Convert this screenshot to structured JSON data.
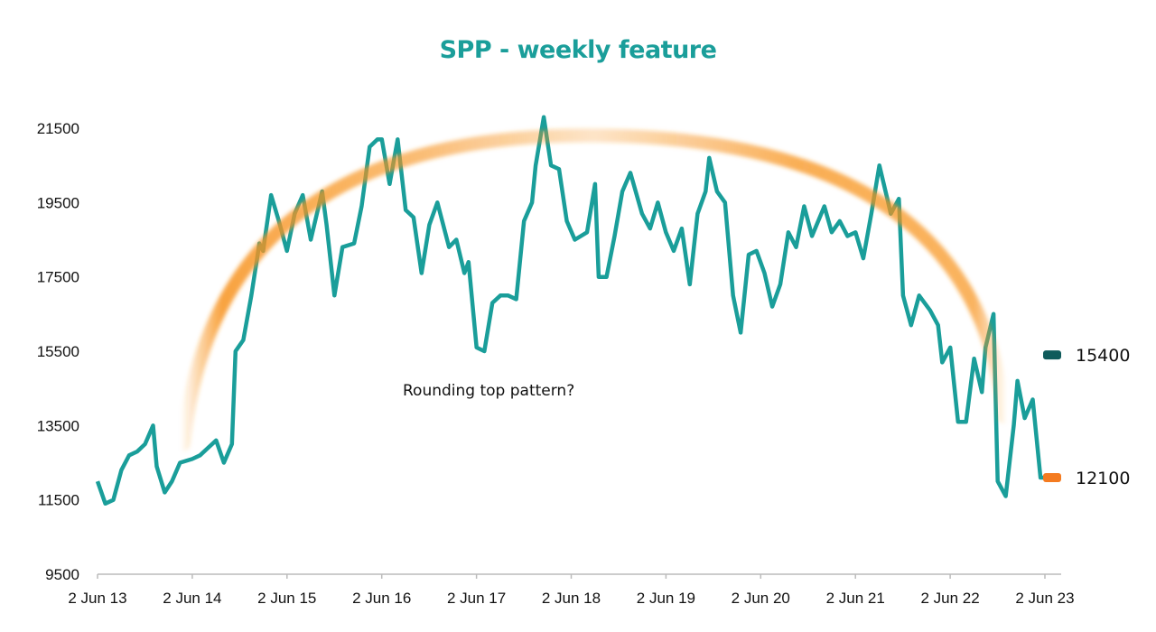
{
  "chart_data": {
    "type": "line",
    "title": "SPP - weekly feature",
    "xlabel": "",
    "ylabel": "",
    "ylim": [
      9500,
      22500
    ],
    "yticks": [
      9500,
      11500,
      13500,
      15500,
      17500,
      19500,
      21500
    ],
    "xticks": [
      "2 Jun 13",
      "2 Jun 14",
      "2 Jun 15",
      "2 Jun 16",
      "2 Jun 17",
      "2 Jun 18",
      "2 Jun 19",
      "2 Jun 20",
      "2 Jun 21",
      "2 Jun 22",
      "2 Jun 23"
    ],
    "xlim": [
      "2013-06-02",
      "2023-06-02"
    ],
    "grid": false,
    "line_color": "#1a9e9a",
    "arc_color": "#f7931e",
    "annotation": "Rounding top pattern?",
    "markers": [
      {
        "label": "15400",
        "value": 15400,
        "color": "#0f5b5b"
      },
      {
        "label": "12100",
        "value": 12100,
        "color": "#f47b20"
      }
    ],
    "points": [
      [
        "2013-06-02",
        12000
      ],
      [
        "2013-07-02",
        11400
      ],
      [
        "2013-08-02",
        11500
      ],
      [
        "2013-09-02",
        12300
      ],
      [
        "2013-10-02",
        12700
      ],
      [
        "2013-11-02",
        12800
      ],
      [
        "2013-12-02",
        13000
      ],
      [
        "2014-01-02",
        13500
      ],
      [
        "2014-01-16",
        12400
      ],
      [
        "2014-02-16",
        11700
      ],
      [
        "2014-03-16",
        12000
      ],
      [
        "2014-04-16",
        12500
      ],
      [
        "2014-06-02",
        12600
      ],
      [
        "2014-07-02",
        12700
      ],
      [
        "2014-08-02",
        12900
      ],
      [
        "2014-09-02",
        13100
      ],
      [
        "2014-10-02",
        12500
      ],
      [
        "2014-11-02",
        13000
      ],
      [
        "2014-11-16",
        15500
      ],
      [
        "2014-12-16",
        15800
      ],
      [
        "2015-01-16",
        17000
      ],
      [
        "2015-02-16",
        18400
      ],
      [
        "2015-03-02",
        18200
      ],
      [
        "2015-04-02",
        19700
      ],
      [
        "2015-05-02",
        19000
      ],
      [
        "2015-06-02",
        18200
      ],
      [
        "2015-07-02",
        19200
      ],
      [
        "2015-08-02",
        19700
      ],
      [
        "2015-09-02",
        18500
      ],
      [
        "2015-10-16",
        19800
      ],
      [
        "2015-11-02",
        18900
      ],
      [
        "2015-12-02",
        17000
      ],
      [
        "2016-01-02",
        18300
      ],
      [
        "2016-02-16",
        18400
      ],
      [
        "2016-03-16",
        19400
      ],
      [
        "2016-04-16",
        21000
      ],
      [
        "2016-05-16",
        21200
      ],
      [
        "2016-06-02",
        21200
      ],
      [
        "2016-07-02",
        20000
      ],
      [
        "2016-08-02",
        21200
      ],
      [
        "2016-09-02",
        19300
      ],
      [
        "2016-10-02",
        19100
      ],
      [
        "2016-11-02",
        17600
      ],
      [
        "2016-12-02",
        18900
      ],
      [
        "2017-01-02",
        19500
      ],
      [
        "2017-02-16",
        18300
      ],
      [
        "2017-03-16",
        18500
      ],
      [
        "2017-04-16",
        17600
      ],
      [
        "2017-05-02",
        17900
      ],
      [
        "2017-06-02",
        15600
      ],
      [
        "2017-07-02",
        15500
      ],
      [
        "2017-08-02",
        16800
      ],
      [
        "2017-09-02",
        17000
      ],
      [
        "2017-10-02",
        17000
      ],
      [
        "2017-11-02",
        16900
      ],
      [
        "2017-12-02",
        19000
      ],
      [
        "2018-01-02",
        19500
      ],
      [
        "2018-01-16",
        20500
      ],
      [
        "2018-02-16",
        21800
      ],
      [
        "2018-03-16",
        20500
      ],
      [
        "2018-04-16",
        20400
      ],
      [
        "2018-05-16",
        19000
      ],
      [
        "2018-06-16",
        18500
      ],
      [
        "2018-08-02",
        18700
      ],
      [
        "2018-09-02",
        20000
      ],
      [
        "2018-09-16",
        17500
      ],
      [
        "2018-10-16",
        17500
      ],
      [
        "2018-11-16",
        18600
      ],
      [
        "2018-12-16",
        19800
      ],
      [
        "2019-01-16",
        20300
      ],
      [
        "2019-03-02",
        19200
      ],
      [
        "2019-04-02",
        18800
      ],
      [
        "2019-05-02",
        19500
      ],
      [
        "2019-06-02",
        18700
      ],
      [
        "2019-07-02",
        18200
      ],
      [
        "2019-08-02",
        18800
      ],
      [
        "2019-09-02",
        17300
      ],
      [
        "2019-10-02",
        19200
      ],
      [
        "2019-11-02",
        19800
      ],
      [
        "2019-11-16",
        20700
      ],
      [
        "2019-12-16",
        19800
      ],
      [
        "2020-01-16",
        19500
      ],
      [
        "2020-02-16",
        17000
      ],
      [
        "2020-03-16",
        16000
      ],
      [
        "2020-04-16",
        18100
      ],
      [
        "2020-05-16",
        18200
      ],
      [
        "2020-06-16",
        17600
      ],
      [
        "2020-07-16",
        16700
      ],
      [
        "2020-08-16",
        17300
      ],
      [
        "2020-09-16",
        18700
      ],
      [
        "2020-10-16",
        18300
      ],
      [
        "2020-11-16",
        19400
      ],
      [
        "2020-12-16",
        18600
      ],
      [
        "2021-02-02",
        19400
      ],
      [
        "2021-03-02",
        18700
      ],
      [
        "2021-04-02",
        19000
      ],
      [
        "2021-05-02",
        18600
      ],
      [
        "2021-06-02",
        18700
      ],
      [
        "2021-07-02",
        18000
      ],
      [
        "2021-08-02",
        19200
      ],
      [
        "2021-09-02",
        20500
      ],
      [
        "2021-10-16",
        19200
      ],
      [
        "2021-11-16",
        19600
      ],
      [
        "2021-12-02",
        17000
      ],
      [
        "2022-01-02",
        16200
      ],
      [
        "2022-02-02",
        17000
      ],
      [
        "2022-03-16",
        16600
      ],
      [
        "2022-04-16",
        16200
      ],
      [
        "2022-05-02",
        15200
      ],
      [
        "2022-06-02",
        15600
      ],
      [
        "2022-07-02",
        13600
      ],
      [
        "2022-08-02",
        13600
      ],
      [
        "2022-09-02",
        15300
      ],
      [
        "2022-10-02",
        14400
      ],
      [
        "2022-10-16",
        15600
      ],
      [
        "2022-11-16",
        16500
      ],
      [
        "2022-12-02",
        12000
      ],
      [
        "2023-01-02",
        11600
      ],
      [
        "2023-02-02",
        13500
      ],
      [
        "2023-02-16",
        14700
      ],
      [
        "2023-03-16",
        13700
      ],
      [
        "2023-04-16",
        14200
      ],
      [
        "2023-05-16",
        12100
      ],
      [
        "2023-06-02",
        12100
      ]
    ]
  }
}
